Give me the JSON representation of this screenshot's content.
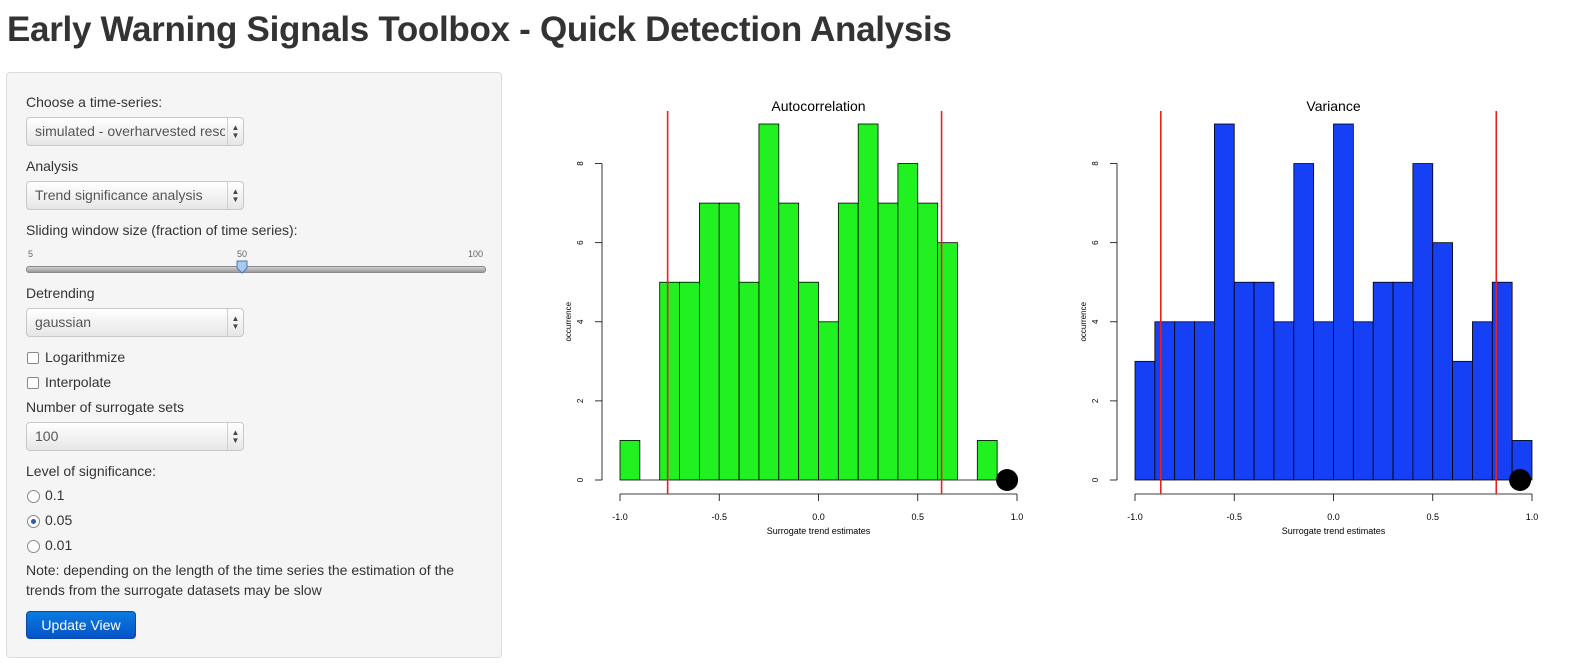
{
  "page": {
    "title": "Early Warning Signals Toolbox - Quick Detection Analysis"
  },
  "sidebar": {
    "timeseries": {
      "label": "Choose a time-series:",
      "value": "simulated - overharvested resource"
    },
    "analysis": {
      "label": "Analysis",
      "value": "Trend significance analysis"
    },
    "window": {
      "label": "Sliding window size (fraction of time series):",
      "min": "5",
      "max": "100",
      "value": "50",
      "fraction": 0.4737
    },
    "detrending": {
      "label": "Detrending",
      "value": "gaussian"
    },
    "logarithmize": {
      "label": "Logarithmize",
      "checked": false
    },
    "interpolate": {
      "label": "Interpolate",
      "checked": false
    },
    "surrogates": {
      "label": "Number of surrogate sets",
      "value": "100"
    },
    "significance": {
      "label": "Level of significance:",
      "options": [
        "0.1",
        "0.05",
        "0.01"
      ],
      "selected": "0.05"
    },
    "note": "Note: depending on the length of the time series the estimation of the trends from the surrogate datasets may be slow",
    "update_button": "Update View"
  },
  "chart_data": [
    {
      "type": "bar",
      "title": "Autocorrelation",
      "xlabel": "Surrogate trend estimates",
      "ylabel": "occurrence",
      "xlim": [
        -1.0,
        1.0
      ],
      "ylim": [
        0,
        9
      ],
      "xticks": [
        "-1.0",
        "-0.5",
        "0.0",
        "0.5",
        "1.0"
      ],
      "yticks": [
        "0",
        "2",
        "4",
        "6",
        "8"
      ],
      "bin_start": -1.0,
      "bin_width": 0.1,
      "values": [
        1,
        0,
        5,
        5,
        7,
        7,
        5,
        9,
        7,
        5,
        4,
        7,
        9,
        7,
        8,
        7,
        6,
        0,
        1,
        0
      ],
      "fill": "#21f021",
      "lines": [
        -0.76,
        0.62
      ],
      "line_color": "#e8211e",
      "point": 0.95
    },
    {
      "type": "bar",
      "title": "Variance",
      "xlabel": "Surrogate trend estimates",
      "ylabel": "occurrence",
      "xlim": [
        -1.0,
        1.0
      ],
      "ylim": [
        0,
        9
      ],
      "xticks": [
        "-1.0",
        "-0.5",
        "0.0",
        "0.5",
        "1.0"
      ],
      "yticks": [
        "0",
        "2",
        "4",
        "6",
        "8"
      ],
      "bin_start": -1.0,
      "bin_width": 0.1,
      "values": [
        3,
        4,
        4,
        4,
        9,
        5,
        5,
        4,
        8,
        4,
        9,
        4,
        5,
        5,
        8,
        6,
        3,
        4,
        5,
        1
      ],
      "fill": "#1540f5",
      "lines": [
        -0.87,
        0.82
      ],
      "line_color": "#e8211e",
      "point": 0.94
    }
  ]
}
